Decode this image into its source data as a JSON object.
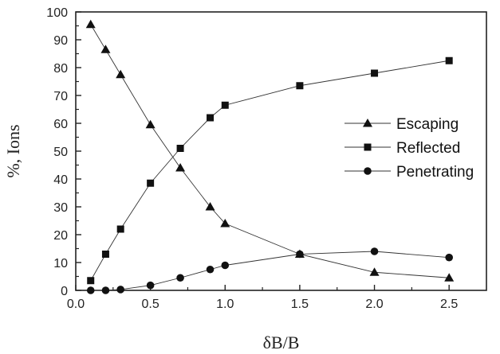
{
  "chart_data": {
    "type": "line",
    "xlabel": "δB/B",
    "ylabel": "%, Ions",
    "xlim": [
      0.0,
      2.75
    ],
    "ylim": [
      0,
      100
    ],
    "xticks": [
      "0.0",
      "0.5",
      "1.0",
      "1.5",
      "2.0",
      "2.5"
    ],
    "yticks": [
      "0",
      "10",
      "20",
      "30",
      "40",
      "50",
      "60",
      "70",
      "80",
      "90",
      "100"
    ],
    "legend_position": "right-middle",
    "grid": false,
    "series": [
      {
        "name": "Escaping",
        "marker": "triangle",
        "x": [
          0.1,
          0.2,
          0.3,
          0.5,
          0.7,
          0.9,
          1.0,
          1.5,
          2.0,
          2.5
        ],
        "values": [
          95.5,
          86.5,
          77.5,
          59.5,
          44.0,
          30.0,
          24.0,
          13.0,
          6.5,
          4.5
        ]
      },
      {
        "name": "Reflected",
        "marker": "square",
        "x": [
          0.1,
          0.2,
          0.3,
          0.5,
          0.7,
          0.9,
          1.0,
          1.5,
          2.0,
          2.5
        ],
        "values": [
          3.5,
          13.0,
          22.0,
          38.5,
          51.0,
          62.0,
          66.5,
          73.5,
          78.0,
          82.5
        ]
      },
      {
        "name": "Penetrating",
        "marker": "circle",
        "x": [
          0.1,
          0.2,
          0.3,
          0.5,
          0.7,
          0.9,
          1.0,
          1.5,
          2.0,
          2.5
        ],
        "values": [
          0.0,
          0.0,
          0.3,
          1.8,
          4.5,
          7.5,
          9.0,
          13.0,
          14.0,
          11.8
        ]
      }
    ]
  }
}
